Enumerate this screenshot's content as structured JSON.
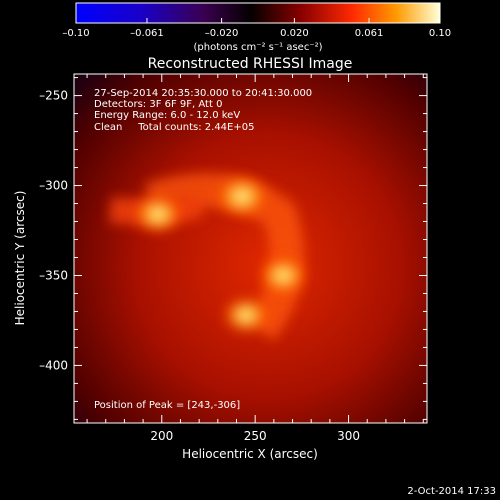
{
  "chart_data": {
    "type": "heatmap",
    "title": "Reconstructed RHESSI Image",
    "xlabel": "Heliocentric X (arcsec)",
    "ylabel": "Heliocentric Y (arcsec)",
    "xlim": [
      153,
      342
    ],
    "ylim": [
      -432,
      -238
    ],
    "x_ticks": [
      200,
      250,
      300
    ],
    "y_ticks": [
      -250,
      -300,
      -350,
      -400
    ],
    "colorbar": {
      "range": [
        -0.1,
        0.1
      ],
      "tick_values": [
        -0.1,
        -0.061,
        -0.02,
        0.02,
        0.061,
        0.1
      ],
      "tick_labels": [
        "–0.10",
        "–0.061",
        "–0.020",
        "0.020",
        "0.061",
        "0.10"
      ],
      "unit_label": "(photons cm⁻² s⁻¹ asec⁻²)"
    },
    "info_lines": [
      "27-Sep-2014 20:35:30.000 to 20:41:30.000",
      "Detectors: 3F 6F 9F, Att 0",
      "Energy Range: 6.0 - 12.0 keV",
      "Clean     Total counts: 2.44E+05"
    ],
    "peak_label": "Position of Peak = [243,-306]",
    "sources": [
      {
        "x": 243,
        "y": -306,
        "intensity": 1.0
      },
      {
        "x": 198,
        "y": -316,
        "intensity": 0.92
      },
      {
        "x": 265,
        "y": -350,
        "intensity": 0.88
      },
      {
        "x": 245,
        "y": -372,
        "intensity": 0.85
      }
    ]
  },
  "footer": {
    "timestamp": "2-Oct-2014 17:33"
  }
}
